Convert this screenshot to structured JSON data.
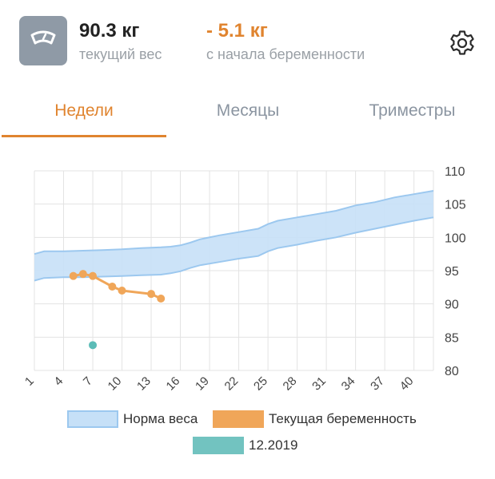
{
  "header": {
    "scale_icon": "scale-icon",
    "current_weight": {
      "value": "90.3 кг",
      "label": "текущий вес"
    },
    "weight_change": {
      "value": "- 5.1 кг",
      "label": "с начала беременности"
    },
    "settings_icon": "gear-icon"
  },
  "tabs": [
    {
      "label": "Недели",
      "active": true
    },
    {
      "label": "Месяцы",
      "active": false
    },
    {
      "label": "Триместры",
      "active": false
    }
  ],
  "colors": {
    "accent": "#e0842f",
    "norm_fill": "#c6e0f7",
    "norm_stroke": "#9cc8ef",
    "current": "#f0a659",
    "past": "#5bbcb7",
    "tab_inactive": "#8b95a1"
  },
  "chart_data": {
    "type": "line",
    "x_ticks": [
      1,
      4,
      7,
      10,
      13,
      16,
      19,
      22,
      25,
      28,
      31,
      34,
      37,
      40
    ],
    "xlim": [
      1,
      42
    ],
    "y_ticks": [
      80,
      85,
      90,
      95,
      100,
      105,
      110
    ],
    "ylim": [
      80,
      110
    ],
    "grid": true,
    "y_axis_position": "right",
    "norm_band": {
      "name": "Норма веса",
      "x": [
        1,
        2,
        4,
        6,
        8,
        10,
        12,
        14,
        15,
        16,
        17,
        18,
        20,
        22,
        24,
        25,
        26,
        28,
        30,
        32,
        34,
        36,
        38,
        40,
        42
      ],
      "upper": [
        97.5,
        97.9,
        97.9,
        98.0,
        98.1,
        98.2,
        98.4,
        98.5,
        98.6,
        98.8,
        99.2,
        99.7,
        100.3,
        100.8,
        101.3,
        102.0,
        102.5,
        103.0,
        103.5,
        104.0,
        104.8,
        105.3,
        106.0,
        106.5,
        107.0
      ],
      "lower": [
        93.5,
        93.9,
        94.0,
        94.0,
        94.1,
        94.2,
        94.3,
        94.4,
        94.6,
        94.9,
        95.4,
        95.8,
        96.3,
        96.8,
        97.2,
        97.9,
        98.4,
        98.9,
        99.5,
        100.0,
        100.7,
        101.3,
        101.9,
        102.5,
        103.0
      ]
    },
    "series": [
      {
        "name": "Текущая беременность",
        "x": [
          5,
          6,
          7,
          9,
          10,
          13,
          14
        ],
        "y": [
          94.2,
          94.5,
          94.2,
          92.6,
          92.0,
          91.5,
          90.8
        ]
      },
      {
        "name": "12.2019",
        "x": [
          7
        ],
        "y": [
          83.8
        ]
      }
    ]
  },
  "legend": {
    "norm": "Норма веса",
    "current": "Текущая беременность",
    "past": "12.2019"
  }
}
